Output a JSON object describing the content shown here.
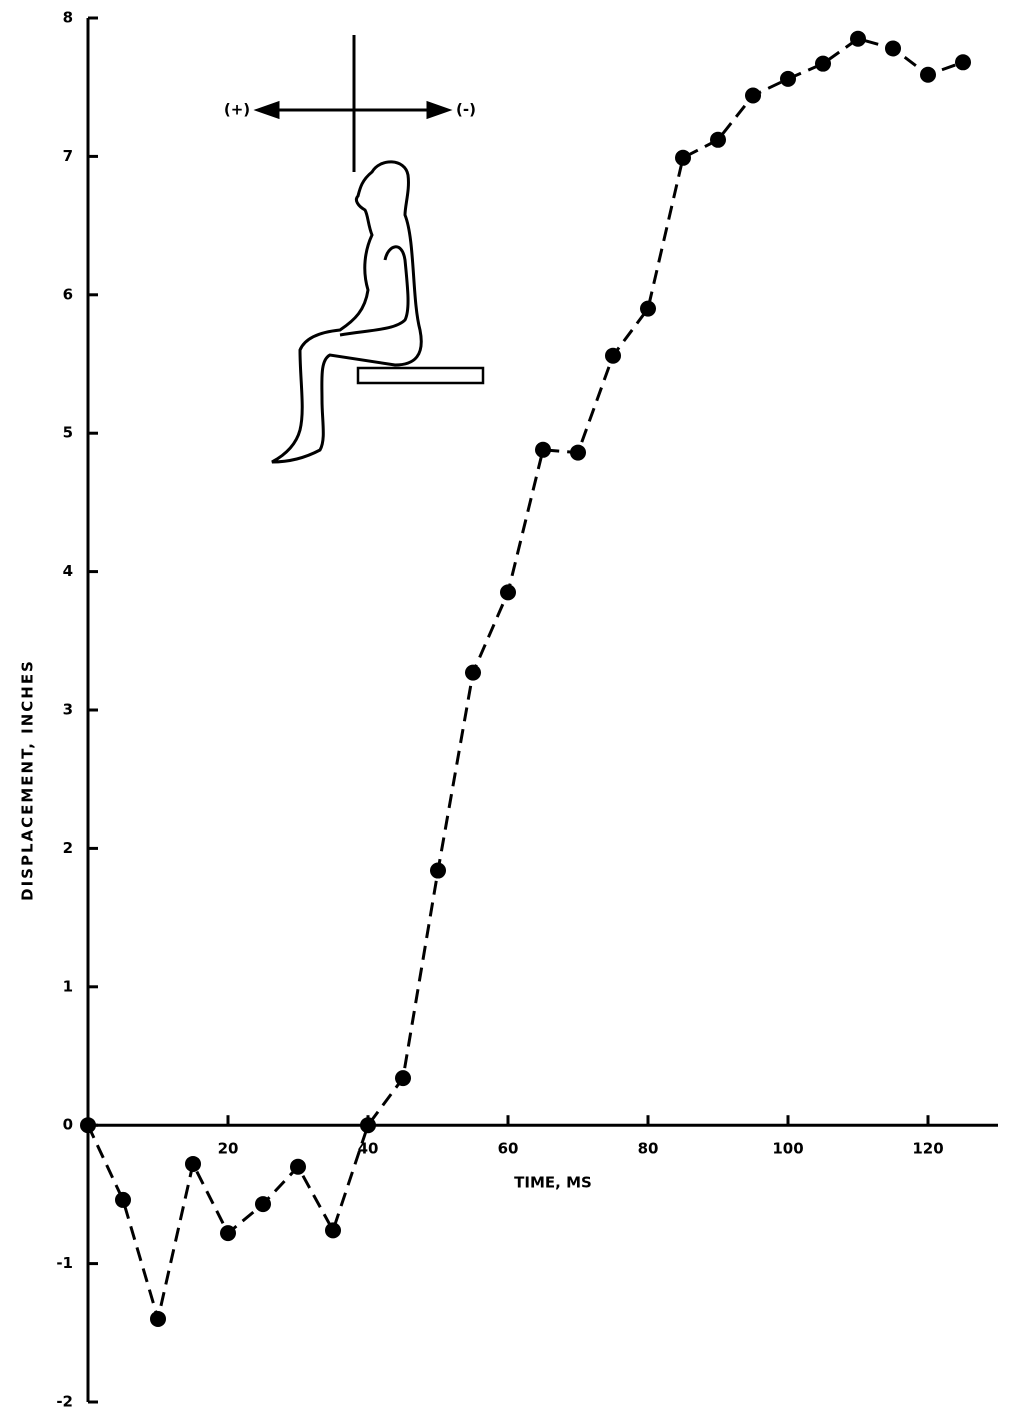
{
  "chart_data": {
    "type": "line",
    "x_label": "TIME, MS",
    "y_label": "DISPLACEMENT, INCHES",
    "annotations": [
      "(+)",
      "(-)"
    ],
    "x": [
      0,
      5,
      10,
      15,
      20,
      25,
      30,
      35,
      40,
      45,
      50,
      55,
      60,
      65,
      70,
      75,
      80,
      85,
      90,
      95,
      100,
      105,
      110,
      115,
      120,
      125
    ],
    "series": [
      {
        "color": "#000000",
        "values": [
          0,
          -0.54,
          -1.4,
          -0.28,
          -0.78,
          -0.57,
          -0.3,
          -0.76,
          0,
          0.34,
          1.84,
          3.27,
          3.85,
          4.88,
          4.86,
          5.56,
          5.9,
          6.99,
          7.12,
          7.44,
          7.56,
          7.67,
          7.85,
          7.78,
          7.59,
          7.68
        ]
      }
    ],
    "xlim": [
      0,
      130
    ],
    "ylim": [
      -2,
      8
    ],
    "xticks": [
      20,
      40,
      60,
      80,
      100,
      120
    ],
    "yticks": [
      -2,
      -1,
      0,
      1,
      2,
      3,
      4,
      5,
      6,
      7,
      8
    ]
  }
}
